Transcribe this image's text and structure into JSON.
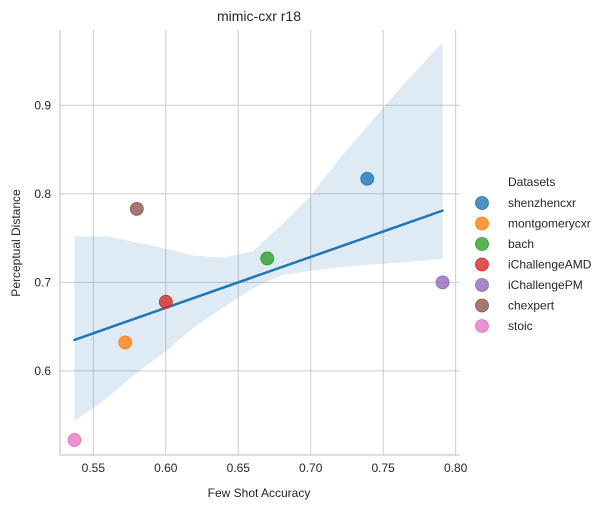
{
  "chart_data": {
    "type": "scatter",
    "title": "mimic-cxr r18",
    "xlabel": "Few Shot Accuracy",
    "ylabel": "Perceptual Distance",
    "xlim": [
      0.527,
      0.803
    ],
    "ylim": [
      0.505,
      0.985
    ],
    "xticks": [
      0.55,
      0.6,
      0.65,
      0.7,
      0.75,
      0.8
    ],
    "xtick_labels": [
      "0.55",
      "0.60",
      "0.65",
      "0.70",
      "0.75",
      "0.80"
    ],
    "yticks": [
      0.6,
      0.7,
      0.8,
      0.9
    ],
    "ytick_labels": [
      "0.6",
      "0.7",
      "0.8",
      "0.9"
    ],
    "grid": true,
    "legend": {
      "title": "Datasets",
      "placement": "right"
    },
    "points": [
      {
        "name": "shenzhencxr",
        "x": 0.739,
        "y": 0.817,
        "color": "#1f77b4"
      },
      {
        "name": "montgomerycxr",
        "x": 0.572,
        "y": 0.632,
        "color": "#ff7f0e"
      },
      {
        "name": "bach",
        "x": 0.67,
        "y": 0.727,
        "color": "#2ca02c"
      },
      {
        "name": "iChallengeAMD",
        "x": 0.6,
        "y": 0.678,
        "color": "#d62728"
      },
      {
        "name": "iChallengePM",
        "x": 0.791,
        "y": 0.7,
        "color": "#9467bd"
      },
      {
        "name": "chexpert",
        "x": 0.58,
        "y": 0.783,
        "color": "#8c564b"
      },
      {
        "name": "stoic",
        "x": 0.537,
        "y": 0.522,
        "color": "#e377c2"
      }
    ],
    "regression": {
      "color": "#1f77b4",
      "x": [
        0.537,
        0.791
      ],
      "y": [
        0.635,
        0.781
      ]
    },
    "confidence_band": {
      "color": "#1f77b4",
      "x": [
        0.537,
        0.56,
        0.58,
        0.6,
        0.62,
        0.64,
        0.66,
        0.68,
        0.7,
        0.72,
        0.74,
        0.76,
        0.78,
        0.791
      ],
      "lower": [
        0.543,
        0.57,
        0.598,
        0.622,
        0.65,
        0.672,
        0.693,
        0.708,
        0.713,
        0.717,
        0.72,
        0.722,
        0.725,
        0.727
      ],
      "upper": [
        0.752,
        0.752,
        0.745,
        0.738,
        0.73,
        0.728,
        0.735,
        0.765,
        0.798,
        0.84,
        0.878,
        0.916,
        0.952,
        0.971
      ]
    }
  }
}
